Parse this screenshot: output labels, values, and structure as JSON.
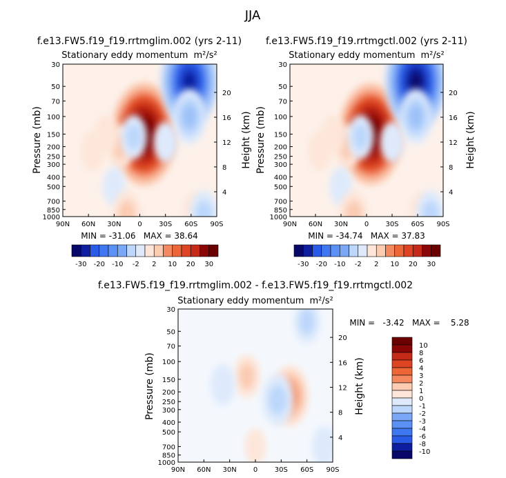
{
  "page_title": "JJA",
  "units": "m²/s²",
  "colors": {
    "neg": [
      "#08086b",
      "#0d1e9e",
      "#1a3fcc",
      "#2a5be6",
      "#3f77f0",
      "#5b91f5",
      "#7aa8f7",
      "#9cc1f8",
      "#bcd7fb",
      "#deeafc"
    ],
    "pos": [
      "#fde6d9",
      "#fbcbb2",
      "#f8ab8a",
      "#f4895f",
      "#ec6638",
      "#dd4424",
      "#c42a17",
      "#a7140d",
      "#8a0606",
      "#6b0000"
    ]
  },
  "chart_data": [
    {
      "type": "heatmap",
      "id": "p1",
      "title": "f.e13.FW5.f19_f19.rrtmglim.002 (yrs 2-11)",
      "subtitle": "Stationary eddy momentum",
      "units": "m²/s²",
      "ylabel": "Pressure (mb)",
      "ylabel_right": "Height (km)",
      "x_ticks": [
        "90N",
        "60N",
        "30N",
        "0",
        "30S",
        "60S",
        "90S"
      ],
      "y_ticks": [
        "30",
        "50",
        "70",
        "100",
        "150",
        "200",
        "250",
        "300",
        "400",
        "500",
        "700",
        "850",
        "1000"
      ],
      "y_ticks_right": [
        "20",
        "16",
        "12",
        "8",
        "4"
      ],
      "stats": "MIN = -31.06   MAX = 38.64",
      "levels": [
        -30,
        -25,
        -20,
        -15,
        -10,
        -5,
        -2,
        0,
        2,
        5,
        10,
        15,
        20,
        25,
        30
      ],
      "colorbar_labels": [
        "-30",
        "-20",
        "-10",
        "-2",
        "2",
        "10",
        "20",
        "30"
      ],
      "features": [
        {
          "lat": -5,
          "p": 150,
          "value": 38.64
        },
        {
          "lat": 22,
          "p": 200,
          "value": 6
        },
        {
          "lat": 55,
          "p": 220,
          "value": 4
        },
        {
          "lat": 40,
          "p": 150,
          "value": 3
        },
        {
          "lat": -58,
          "p": 45,
          "value": -31.06
        },
        {
          "lat": -58,
          "p": 100,
          "value": -12
        },
        {
          "lat": 7,
          "p": 160,
          "value": -6
        },
        {
          "lat": -30,
          "p": 180,
          "value": -4
        },
        {
          "lat": 30,
          "p": 500,
          "value": -3
        },
        {
          "lat": 15,
          "p": 950,
          "value": 8
        },
        {
          "lat": -65,
          "p": 930,
          "value": 5
        },
        {
          "lat": -75,
          "p": 950,
          "value": -8
        }
      ]
    },
    {
      "type": "heatmap",
      "id": "p2",
      "title": "f.e13.FW5.f19_f19.rrtmgctl.002 (yrs 2-11)",
      "subtitle": "Stationary eddy momentum",
      "units": "m²/s²",
      "ylabel": "Pressure (mb)",
      "ylabel_right": "Height (km)",
      "x_ticks": [
        "90N",
        "60N",
        "30N",
        "0",
        "30S",
        "60S",
        "90S"
      ],
      "y_ticks": [
        "30",
        "50",
        "70",
        "100",
        "150",
        "200",
        "250",
        "300",
        "400",
        "500",
        "700",
        "850",
        "1000"
      ],
      "y_ticks_right": [
        "20",
        "16",
        "12",
        "8",
        "4"
      ],
      "stats": "MIN = -34.74   MAX = 37.83",
      "levels": [
        -30,
        -25,
        -20,
        -15,
        -10,
        -5,
        -2,
        0,
        2,
        5,
        10,
        15,
        20,
        25,
        30
      ],
      "colorbar_labels": [
        "-30",
        "-20",
        "-10",
        "-2",
        "2",
        "10",
        "20",
        "30"
      ],
      "features": [
        {
          "lat": -5,
          "p": 150,
          "value": 37.83
        },
        {
          "lat": 22,
          "p": 200,
          "value": 6
        },
        {
          "lat": 55,
          "p": 220,
          "value": 4
        },
        {
          "lat": 40,
          "p": 150,
          "value": 3
        },
        {
          "lat": -58,
          "p": 45,
          "value": -34.74
        },
        {
          "lat": -58,
          "p": 100,
          "value": -12
        },
        {
          "lat": 7,
          "p": 160,
          "value": -6
        },
        {
          "lat": -30,
          "p": 180,
          "value": -4
        },
        {
          "lat": 30,
          "p": 500,
          "value": -3
        },
        {
          "lat": 15,
          "p": 950,
          "value": 8
        },
        {
          "lat": -65,
          "p": 930,
          "value": 5
        },
        {
          "lat": -75,
          "p": 950,
          "value": -8
        }
      ]
    },
    {
      "type": "heatmap",
      "id": "p3",
      "title": "f.e13.FW5.f19_f19.rrtmglim.002 - f.e13.FW5.f19_f19.rrtmgctl.002",
      "subtitle": "Stationary eddy momentum",
      "units": "m²/s²",
      "ylabel": "Pressure (mb)",
      "ylabel_right": "Height (km)",
      "x_ticks": [
        "90N",
        "60N",
        "30N",
        "0",
        "30S",
        "60S",
        "90S"
      ],
      "y_ticks": [
        "30",
        "50",
        "70",
        "100",
        "150",
        "200",
        "250",
        "300",
        "400",
        "500",
        "700",
        "850",
        "1000"
      ],
      "y_ticks_right": [
        "20",
        "16",
        "12",
        "8",
        "4"
      ],
      "stats": "MIN =   -3.42   MAX =    5.28",
      "levels": [
        -10,
        -8,
        -6,
        -4,
        -3,
        -2,
        -1,
        0,
        1,
        2,
        3,
        4,
        6,
        8,
        10
      ],
      "colorbar_labels": [
        "10",
        "8",
        "6",
        "4",
        "3",
        "2",
        "1",
        "0",
        "-1",
        "-2",
        "-3",
        "-4",
        "-6",
        "-8",
        "-10"
      ],
      "features": [
        {
          "lat": -40,
          "p": 220,
          "value": 5.28
        },
        {
          "lat": -26,
          "p": 240,
          "value": -3.42
        },
        {
          "lat": 10,
          "p": 140,
          "value": 2
        },
        {
          "lat": -60,
          "p": 40,
          "value": -2
        },
        {
          "lat": 38,
          "p": 170,
          "value": -1.5
        },
        {
          "lat": -80,
          "p": 700,
          "value": -1.5
        },
        {
          "lat": 0,
          "p": 700,
          "value": 0.6
        }
      ]
    }
  ]
}
